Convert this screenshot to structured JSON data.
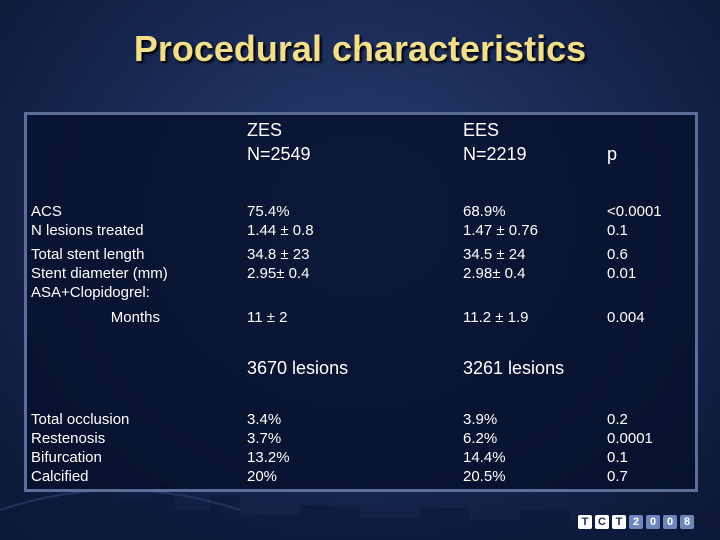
{
  "title": "Procedural characteristics",
  "headers": {
    "zes_name": "ZES",
    "zes_n": "N=2549",
    "ees_name": "EES",
    "ees_n": "N=2219",
    "p": "p"
  },
  "group1": {
    "labels": [
      "ACS",
      "N lesions treated",
      "Total stent length",
      "Stent diameter (mm)",
      "ASA+Clopidogrel:",
      "Months"
    ],
    "zes": [
      "75.4%",
      "1.44 ± 0.8",
      "34.8 ± 23",
      "2.95± 0.4",
      "11 ± 2"
    ],
    "ees": [
      "68.9%",
      "1.47 ± 0.76",
      "34.5 ± 24",
      "2.98± 0.4",
      "11.2 ± 1.9"
    ],
    "p": [
      "<0.0001",
      "0.1",
      "0.6",
      "0.01",
      "0.004"
    ]
  },
  "lesions": {
    "zes": "3670 lesions",
    "ees": "3261 lesions"
  },
  "group2": {
    "labels": [
      "Total occlusion",
      "Restenosis",
      "Bifurcation",
      "Calcified"
    ],
    "zes": [
      "3.4%",
      "3.7%",
      "13.2%",
      "20%"
    ],
    "ees": [
      "3.9%",
      "6.2%",
      "14.4%",
      "20.5%"
    ],
    "p": [
      "0.2",
      "0.0001",
      "0.1",
      "0.7"
    ]
  },
  "logo": {
    "letters": [
      "T",
      "C",
      "T",
      "2",
      "0",
      "0",
      "8"
    ]
  }
}
